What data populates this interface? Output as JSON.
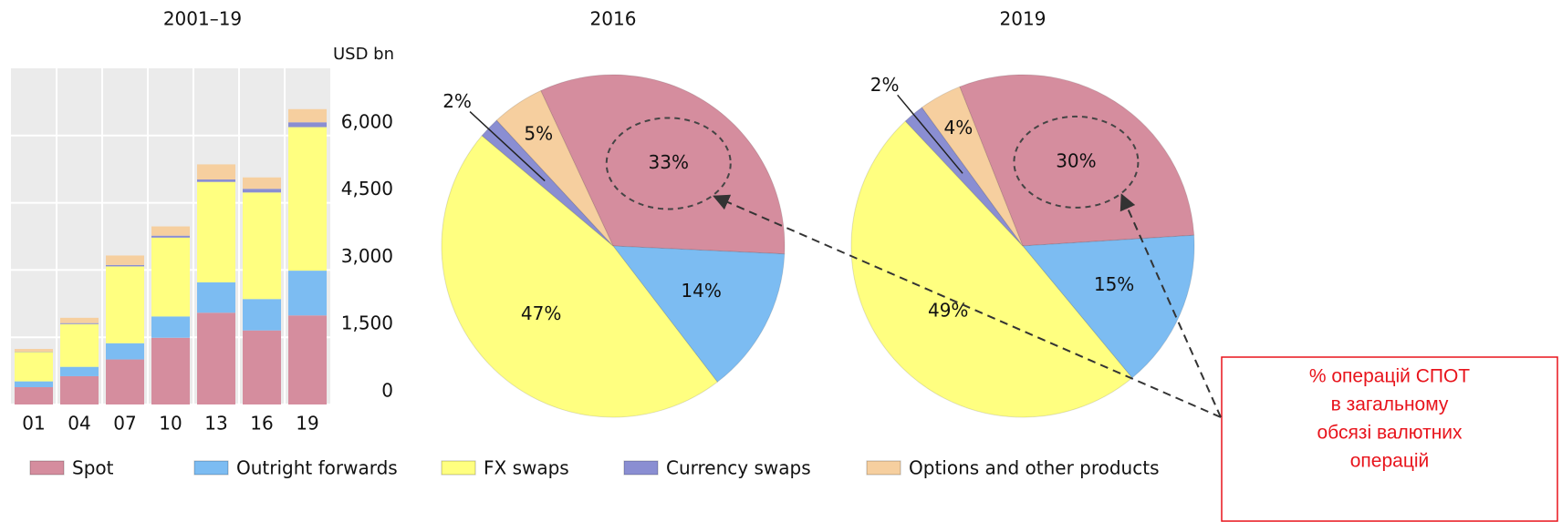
{
  "chart_data": [
    {
      "type": "bar",
      "stacked": true,
      "title": "2001–19",
      "ylabel": "USD bn",
      "categories": [
        "01",
        "04",
        "07",
        "10",
        "13",
        "16",
        "19"
      ],
      "series": [
        {
          "name": "Spot",
          "color": "#d58d9e",
          "values": [
            386,
            631,
            1005,
            1489,
            2047,
            1652,
            1987
          ]
        },
        {
          "name": "Outright forwards",
          "color": "#7cbcf2",
          "values": [
            130,
            209,
            362,
            475,
            679,
            700,
            999
          ]
        },
        {
          "name": "FX swaps",
          "color": "#ffff80",
          "values": [
            656,
            954,
            1714,
            1759,
            2240,
            2378,
            3202
          ]
        },
        {
          "name": "Currency swaps",
          "color": "#8a8ed2",
          "values": [
            7,
            21,
            31,
            43,
            54,
            82,
            108
          ]
        },
        {
          "name": "Options and other products",
          "color": "#f6cf9f",
          "values": [
            60,
            119,
            212,
            207,
            337,
            254,
            294
          ]
        }
      ],
      "ylim": [
        0,
        7500
      ],
      "yticks": [
        0,
        {
          "value": 1500,
          "label": "1,500"
        },
        {
          "value": 3000,
          "label": "3,000"
        },
        {
          "value": 4500,
          "label": "4,500"
        },
        {
          "value": 6000,
          "label": "6,000"
        }
      ],
      "grid": true,
      "legend": "bottom"
    },
    {
      "type": "pie",
      "title": "2016",
      "values": [
        33,
        14,
        47,
        2,
        5
      ],
      "value_labels": [
        "33%",
        "14%",
        "47%",
        "2%",
        "5%"
      ],
      "colors": [
        "#d58d9e",
        "#7cbcf2",
        "#ffff80",
        "#8a8ed2",
        "#f6cf9f"
      ]
    },
    {
      "type": "pie",
      "title": "2019",
      "values": [
        30,
        15,
        49,
        2,
        4
      ],
      "value_labels": [
        "30%",
        "15%",
        "49%",
        "2%",
        "4%"
      ],
      "colors": [
        "#d58d9e",
        "#7cbcf2",
        "#ffff80",
        "#8a8ed2",
        "#f6cf9f"
      ]
    }
  ],
  "annotation": {
    "lines": [
      "% операцій СПОТ",
      "в загальному",
      "обсязі валютних",
      "операцій"
    ],
    "color": "#e8141c"
  }
}
